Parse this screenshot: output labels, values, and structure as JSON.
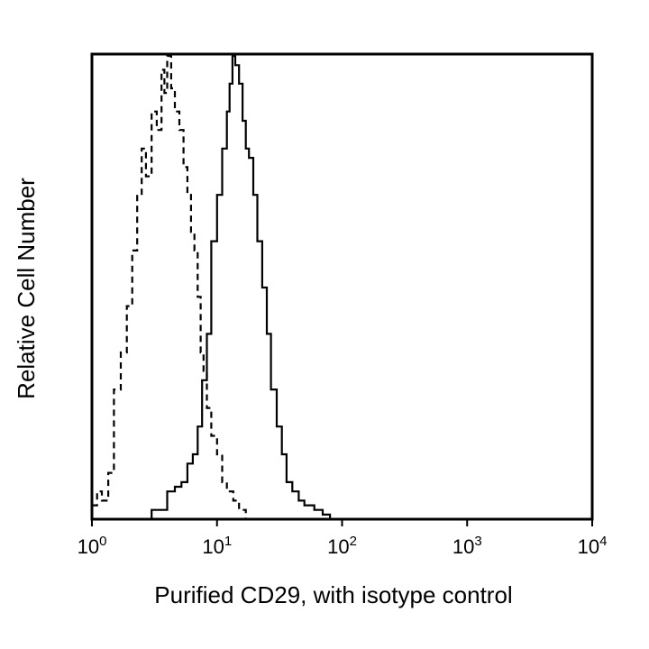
{
  "chart_data": {
    "type": "line",
    "title": "",
    "xlabel": "Purified CD29, with isotype control",
    "ylabel": "Relative Cell Number",
    "x_scale": "log",
    "xlim": [
      1,
      10000
    ],
    "ylim": [
      0,
      100
    ],
    "grid": false,
    "x_ticks": [
      {
        "base": "10",
        "exp": "0",
        "value": 1
      },
      {
        "base": "10",
        "exp": "1",
        "value": 10
      },
      {
        "base": "10",
        "exp": "2",
        "value": 100
      },
      {
        "base": "10",
        "exp": "3",
        "value": 1000
      },
      {
        "base": "10",
        "exp": "4",
        "value": 10000
      }
    ],
    "series": [
      {
        "style": "dashed",
        "color": "#000000",
        "x": [
          1.0,
          1.1,
          1.2,
          1.35,
          1.5,
          1.7,
          1.9,
          2.1,
          2.3,
          2.5,
          2.7,
          3.0,
          3.3,
          3.6,
          3.8,
          4.0,
          4.3,
          4.6,
          5.0,
          5.4,
          5.8,
          6.2,
          6.6,
          7.0,
          7.4,
          7.8,
          8.3,
          9.0,
          10.0,
          11.0,
          12.0,
          13.5,
          15.0,
          17.0
        ],
        "y": [
          3,
          6,
          4,
          10,
          28,
          36,
          46,
          58,
          70,
          80,
          74,
          88,
          84,
          97,
          92,
          100,
          93,
          88,
          84,
          76,
          70,
          62,
          58,
          48,
          36,
          32,
          24,
          18,
          14,
          8,
          6,
          4,
          2,
          0
        ]
      },
      {
        "style": "solid",
        "color": "#000000",
        "x": [
          1.0,
          2.0,
          3.0,
          4.0,
          4.6,
          5.2,
          5.8,
          6.4,
          7.0,
          7.6,
          8.3,
          9.0,
          10.0,
          11.0,
          12.0,
          12.6,
          13.3,
          14.0,
          15.0,
          16.0,
          17.0,
          18.0,
          19.5,
          21.0,
          23.0,
          25.0,
          27.0,
          30.0,
          33.0,
          36.0,
          40.0,
          45.0,
          50.0,
          60.0,
          70.0,
          80.0,
          90.0,
          100.0
        ],
        "y": [
          0,
          0,
          2,
          6,
          7,
          8,
          12,
          14,
          20,
          30,
          40,
          60,
          70,
          80,
          88,
          94,
          100,
          98,
          94,
          86,
          80,
          78,
          70,
          60,
          50,
          40,
          28,
          20,
          14,
          8,
          6,
          4,
          3,
          2,
          1,
          0,
          0,
          0
        ]
      }
    ]
  }
}
